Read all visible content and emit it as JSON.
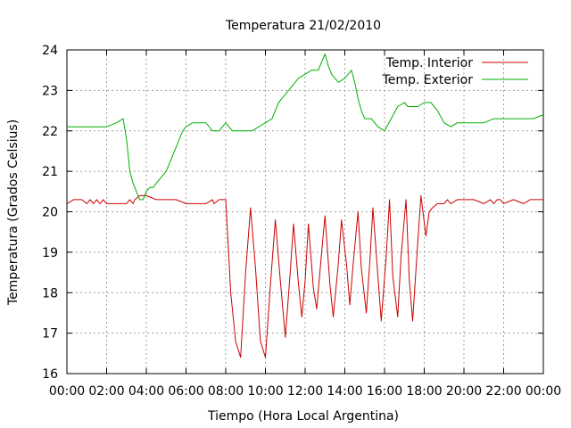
{
  "chart_data": {
    "type": "line",
    "title": "Temperatura 21/02/2010",
    "xlabel": "Tiempo (Hora Local Argentina)",
    "ylabel": "Temperatura (Grados Celsius)",
    "xlim": [
      "00:00",
      "24:00"
    ],
    "ylim": [
      16,
      24
    ],
    "xticks": [
      "00:00",
      "02:00",
      "04:00",
      "06:00",
      "08:00",
      "10:00",
      "12:00",
      "14:00",
      "16:00",
      "18:00",
      "20:00",
      "22:00",
      "00:00"
    ],
    "yticks": [
      "16",
      "17",
      "18",
      "19",
      "20",
      "21",
      "22",
      "23",
      "24"
    ],
    "grid": true,
    "legend_position": "top-right",
    "series": [
      {
        "name": "Temp. Interior",
        "color": "#cc0000",
        "x": [
          "00:00",
          "00:20",
          "00:45",
          "01:00",
          "01:10",
          "01:20",
          "01:30",
          "01:40",
          "01:50",
          "02:00",
          "02:10",
          "02:30",
          "03:00",
          "03:10",
          "03:20",
          "03:25",
          "03:40",
          "04:00",
          "04:30",
          "05:00",
          "05:30",
          "06:00",
          "06:30",
          "07:00",
          "07:20",
          "07:25",
          "07:40",
          "08:00",
          "08:10",
          "08:15",
          "08:30",
          "08:45",
          "09:00",
          "09:15",
          "09:30",
          "09:45",
          "10:00",
          "10:15",
          "10:30",
          "10:45",
          "11:00",
          "11:15",
          "11:25",
          "11:40",
          "11:50",
          "12:00",
          "12:10",
          "12:25",
          "12:35",
          "12:50",
          "13:00",
          "13:15",
          "13:25",
          "13:40",
          "13:50",
          "14:05",
          "14:15",
          "14:25",
          "14:40",
          "14:50",
          "15:05",
          "15:15",
          "15:25",
          "15:40",
          "15:50",
          "16:05",
          "16:15",
          "16:25",
          "16:40",
          "16:50",
          "17:05",
          "17:15",
          "17:25",
          "17:40",
          "17:50",
          "18:05",
          "18:15",
          "18:25",
          "18:40",
          "18:50",
          "19:00",
          "19:10",
          "19:20",
          "19:40",
          "20:00",
          "20:30",
          "21:00",
          "21:20",
          "21:30",
          "21:40",
          "21:50",
          "22:00",
          "22:30",
          "23:00",
          "23:20",
          "23:30",
          "24:00"
        ],
        "y": [
          20.2,
          20.3,
          20.3,
          20.2,
          20.3,
          20.2,
          20.3,
          20.2,
          20.3,
          20.2,
          20.2,
          20.2,
          20.2,
          20.3,
          20.2,
          20.3,
          20.4,
          20.4,
          20.3,
          20.3,
          20.3,
          20.2,
          20.2,
          20.2,
          20.3,
          20.2,
          20.3,
          20.3,
          18.8,
          18.0,
          16.8,
          16.4,
          18.5,
          20.1,
          18.6,
          16.8,
          16.4,
          18.2,
          19.8,
          18.3,
          16.9,
          18.5,
          19.7,
          18.2,
          17.4,
          18.3,
          19.7,
          18.1,
          17.6,
          19.0,
          19.9,
          18.2,
          17.4,
          18.7,
          19.8,
          18.7,
          17.7,
          18.7,
          20.0,
          18.6,
          17.5,
          18.7,
          20.1,
          18.4,
          17.3,
          18.9,
          20.3,
          18.4,
          17.4,
          18.9,
          20.3,
          18.3,
          17.3,
          19.2,
          20.4,
          19.4,
          20.0,
          20.1,
          20.2,
          20.2,
          20.2,
          20.3,
          20.2,
          20.3,
          20.3,
          20.3,
          20.2,
          20.3,
          20.2,
          20.3,
          20.3,
          20.2,
          20.3,
          20.2,
          20.3,
          20.3,
          20.3
        ]
      },
      {
        "name": "Temp. Exterior",
        "color": "#00b000",
        "x": [
          "00:00",
          "01:00",
          "02:00",
          "02:30",
          "02:50",
          "03:00",
          "03:10",
          "03:20",
          "03:30",
          "03:40",
          "03:50",
          "04:00",
          "04:10",
          "04:20",
          "04:30",
          "04:40",
          "05:00",
          "05:10",
          "05:20",
          "05:30",
          "05:40",
          "05:50",
          "06:00",
          "06:20",
          "06:30",
          "07:00",
          "07:20",
          "07:40",
          "08:00",
          "08:20",
          "08:40",
          "09:00",
          "09:20",
          "09:40",
          "10:00",
          "10:20",
          "10:40",
          "11:00",
          "11:20",
          "11:40",
          "12:00",
          "12:20",
          "12:40",
          "12:50",
          "13:00",
          "13:10",
          "13:20",
          "13:40",
          "14:00",
          "14:20",
          "14:30",
          "14:40",
          "14:50",
          "15:00",
          "15:20",
          "15:40",
          "16:00",
          "16:20",
          "16:40",
          "17:00",
          "17:10",
          "17:20",
          "17:40",
          "18:00",
          "18:20",
          "18:40",
          "19:00",
          "19:20",
          "19:40",
          "20:00",
          "20:30",
          "21:00",
          "21:30",
          "22:00",
          "22:30",
          "23:00",
          "23:30",
          "24:00"
        ],
        "y": [
          22.1,
          22.1,
          22.1,
          22.2,
          22.3,
          21.8,
          21.0,
          20.7,
          20.5,
          20.3,
          20.3,
          20.5,
          20.6,
          20.6,
          20.7,
          20.8,
          21.0,
          21.2,
          21.4,
          21.6,
          21.8,
          22.0,
          22.1,
          22.2,
          22.2,
          22.2,
          22.0,
          22.0,
          22.2,
          22.0,
          22.0,
          22.0,
          22.0,
          22.1,
          22.2,
          22.3,
          22.7,
          22.9,
          23.1,
          23.3,
          23.4,
          23.5,
          23.5,
          23.7,
          23.9,
          23.6,
          23.4,
          23.2,
          23.3,
          23.5,
          23.2,
          22.8,
          22.5,
          22.3,
          22.3,
          22.1,
          22.0,
          22.3,
          22.6,
          22.7,
          22.6,
          22.6,
          22.6,
          22.7,
          22.7,
          22.5,
          22.2,
          22.1,
          22.2,
          22.2,
          22.2,
          22.2,
          22.3,
          22.3,
          22.3,
          22.3,
          22.3,
          22.4
        ]
      }
    ]
  }
}
